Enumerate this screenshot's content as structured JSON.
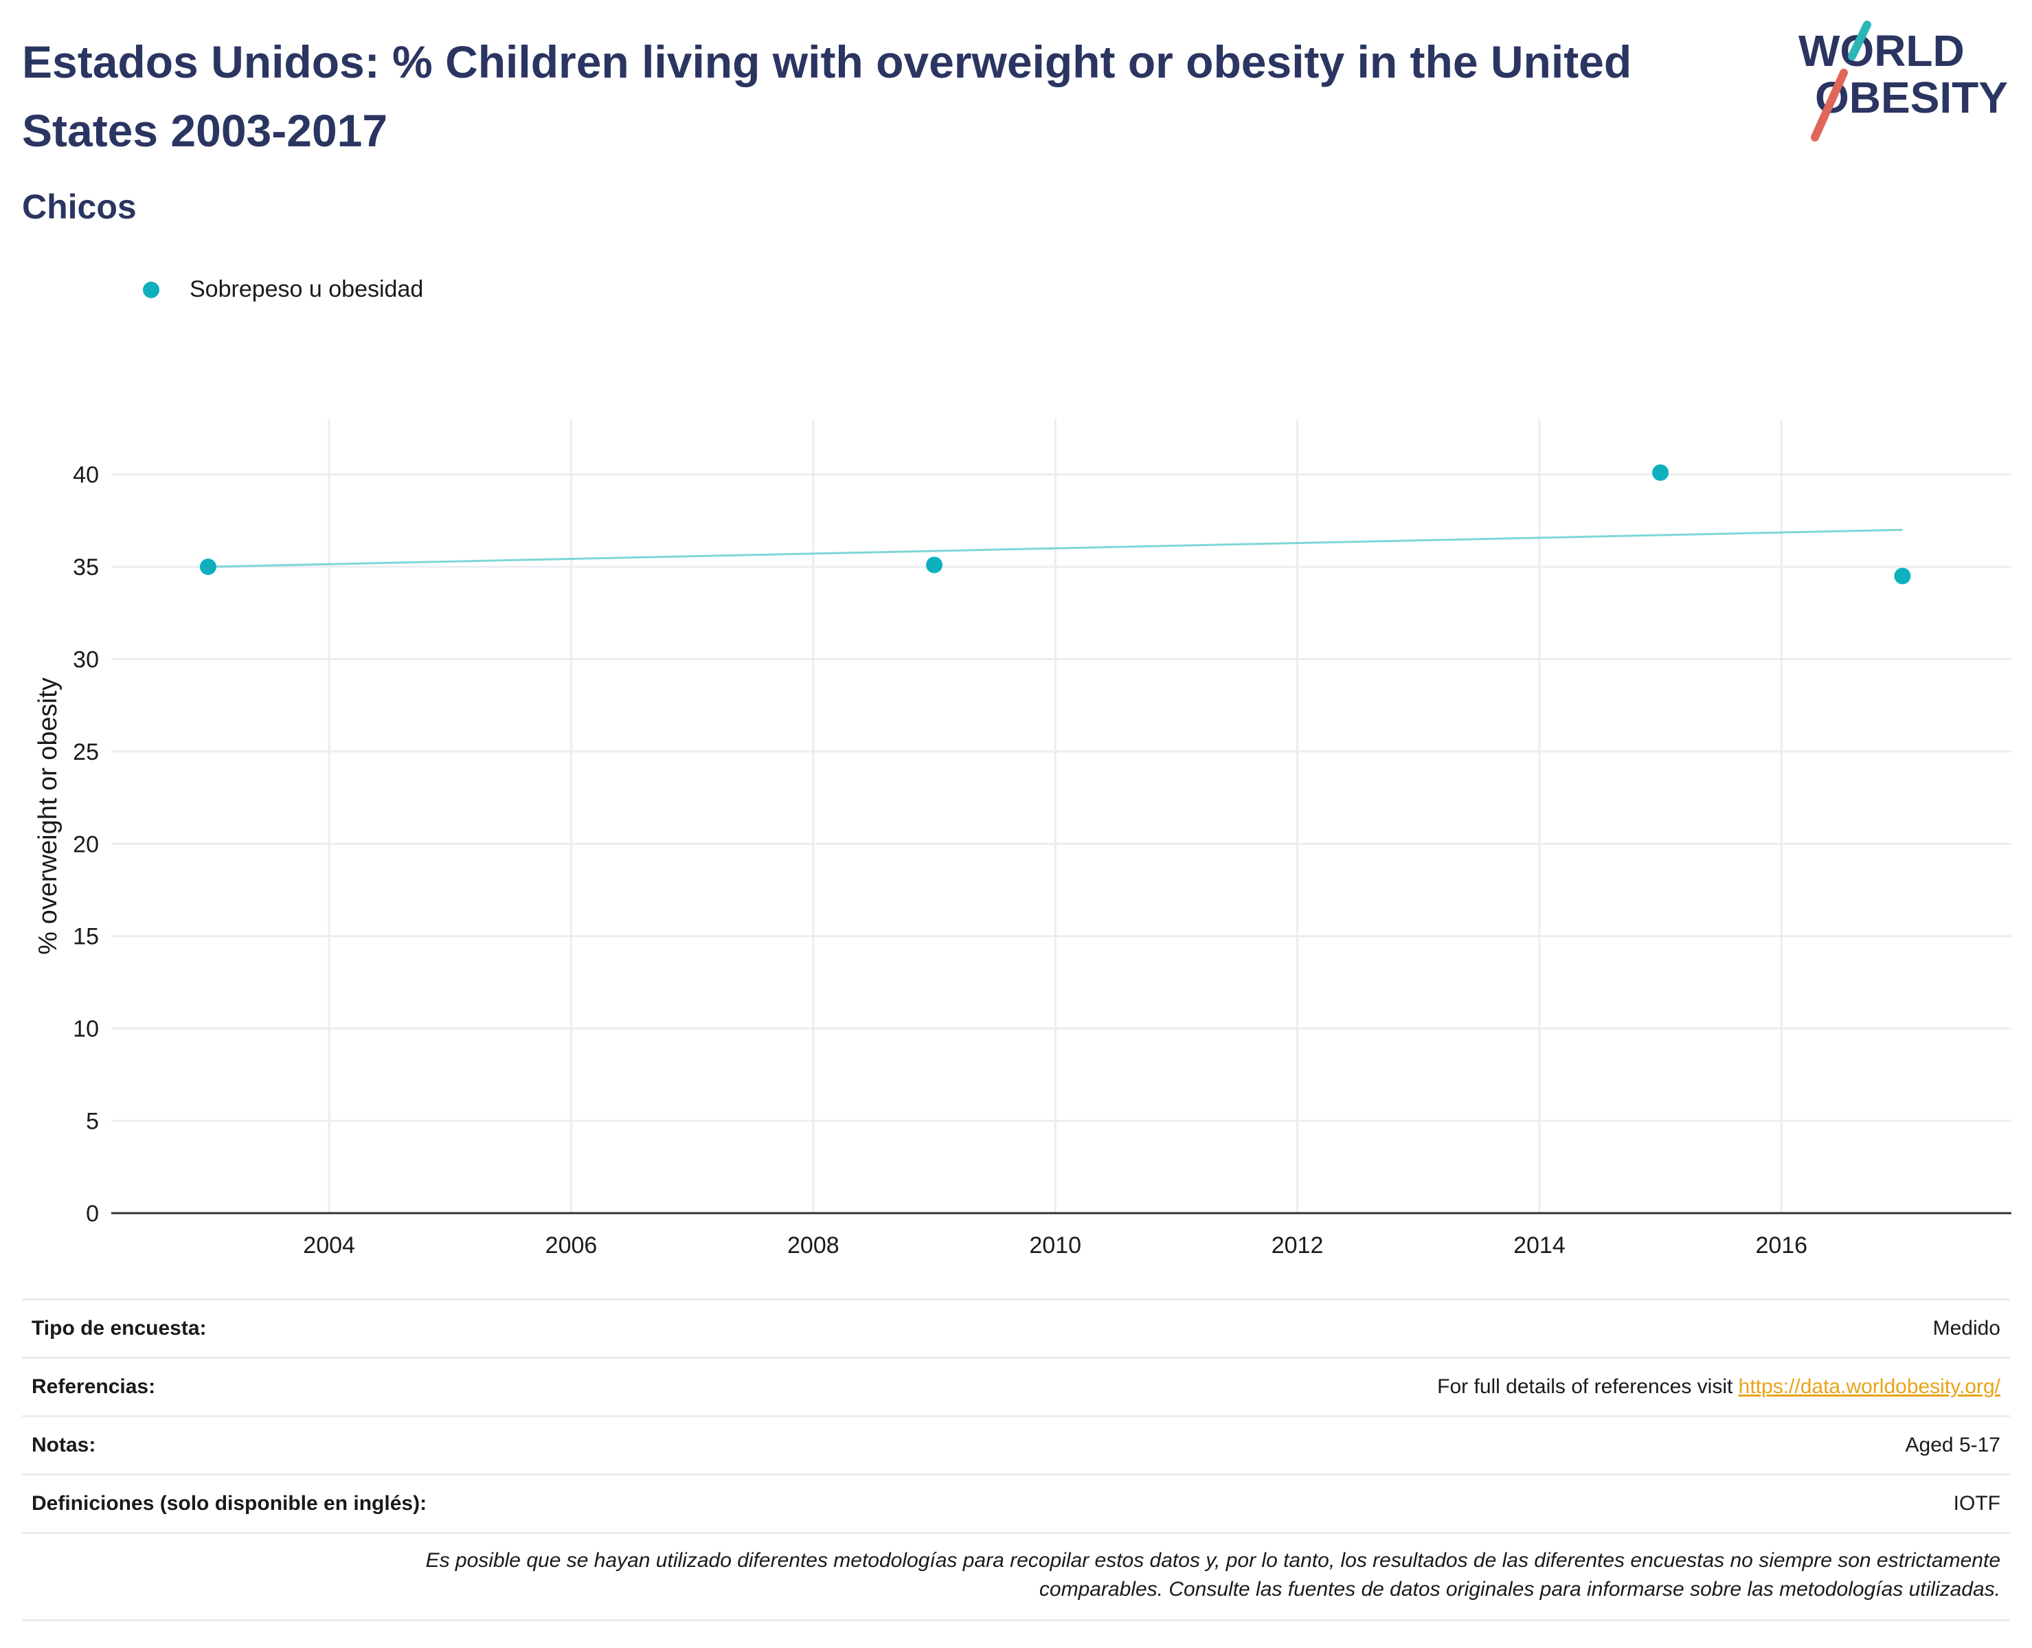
{
  "header": {
    "title": "Estados Unidos: % Children living with overweight or obesity in the United States 2003-2017",
    "subtitle": "Chicos"
  },
  "logo": {
    "line1": "WORLD",
    "line2": "OBESITY",
    "accent_teal": "#2bb6b5",
    "accent_red": "#e1665a",
    "text_color": "#2b3561"
  },
  "colors": {
    "series": "#0fb0bd",
    "trend": "#7fd6d6",
    "grid": "#ebedf0",
    "axis": "#333333"
  },
  "chart_data": {
    "type": "scatter",
    "legend": [
      {
        "name": "Sobrepeso u obesidad",
        "color": "#0fb0bd"
      }
    ],
    "legend_position": "top-left",
    "series": [
      {
        "name": "Sobrepeso u obesidad",
        "x": [
          2003,
          2009,
          2015,
          2017
        ],
        "y": [
          35.0,
          35.1,
          40.1,
          34.5
        ]
      }
    ],
    "trendline": {
      "x": [
        2003,
        2017
      ],
      "y": [
        35.0,
        37.0
      ]
    },
    "xlabel": "",
    "ylabel": "% overweight or obesity",
    "xlim": [
      2002.2,
      2017.9
    ],
    "ylim": [
      0,
      43
    ],
    "xticks": [
      2004,
      2006,
      2008,
      2010,
      2012,
      2014,
      2016
    ],
    "yticks": [
      0,
      5,
      10,
      15,
      20,
      25,
      30,
      35,
      40
    ],
    "grid": true
  },
  "meta": {
    "rows": [
      {
        "label": "Tipo de encuesta:",
        "value": "Medido"
      },
      {
        "label": "Referencias:",
        "value_prefix": "For full details of references visit ",
        "link": "https://data.worldobesity.org/"
      },
      {
        "label": "Notas:",
        "value": "Aged 5-17"
      },
      {
        "label": "Definiciones (solo disponible en inglés):",
        "value": "IOTF"
      }
    ],
    "disclaimer_line1": "Es posible que se hayan utilizado diferentes metodologías para recopilar estos datos y, por lo tanto, los resultados de las diferentes encuestas no siempre son estrictamente",
    "disclaimer_line2": "comparables. Consulte las fuentes de datos originales para informarse sobre las metodologías utilizadas."
  }
}
